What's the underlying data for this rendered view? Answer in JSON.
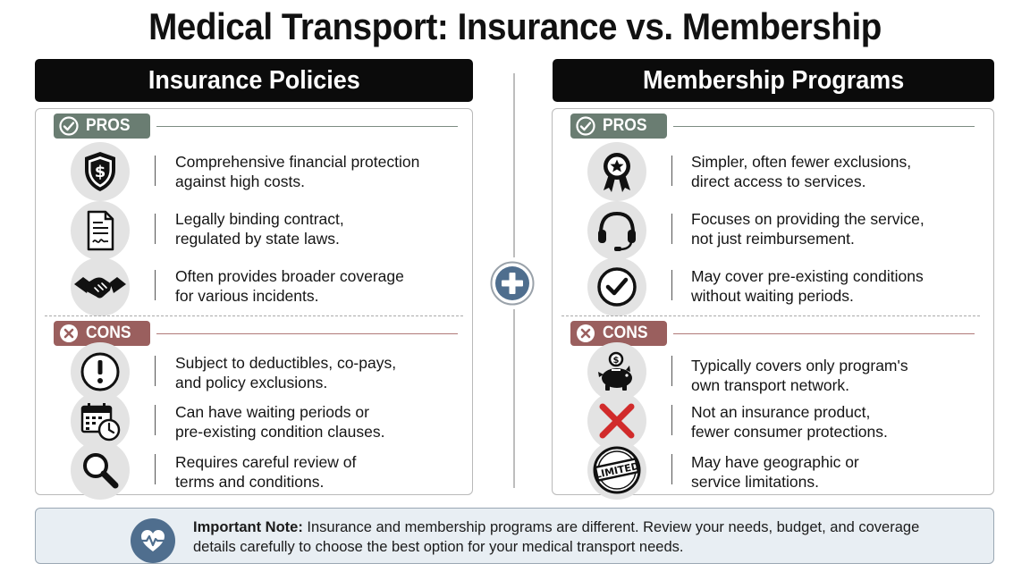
{
  "title": "Medical Transport: Insurance vs. Membership",
  "columns": {
    "insurance": {
      "header": "Insurance Policies",
      "pros_label": "PROS",
      "cons_label": "CONS",
      "pros": [
        {
          "icon": "shield-dollar-icon",
          "line1": "Comprehensive financial protection",
          "line2": "against high costs."
        },
        {
          "icon": "contract-document-icon",
          "line1": "Legally binding contract,",
          "line2": "regulated by state laws."
        },
        {
          "icon": "handshake-icon",
          "line1": "Often provides broader coverage",
          "line2": "for various incidents."
        }
      ],
      "cons": [
        {
          "icon": "exclamation-icon",
          "line1": "Subject to deductibles, co-pays,",
          "line2": "and policy exclusions."
        },
        {
          "icon": "calendar-clock-icon",
          "line1": "Can have waiting periods or",
          "line2": "pre-existing condition clauses."
        },
        {
          "icon": "magnifier-icon",
          "line1": "Requires careful review of",
          "line2": "terms and conditions."
        }
      ]
    },
    "membership": {
      "header": "Membership Programs",
      "pros_label": "PROS",
      "cons_label": "CONS",
      "pros": [
        {
          "icon": "award-ribbon-icon",
          "line1": "Simpler, often fewer exclusions,",
          "line2": "direct access to services."
        },
        {
          "icon": "headset-icon",
          "line1": "Focuses on providing the service,",
          "line2": "not just reimbursement."
        },
        {
          "icon": "checkmark-circle-icon",
          "line1": "May cover pre-existing conditions",
          "line2": "without waiting periods."
        }
      ],
      "cons": [
        {
          "icon": "piggy-bank-icon",
          "line1": "Typically covers only program's",
          "line2": "own transport network."
        },
        {
          "icon": "red-x-icon",
          "line1": "Not an insurance product,",
          "line2": "fewer consumer protections."
        },
        {
          "icon": "limited-stamp-icon",
          "line1": "May have geographic or",
          "line2": "service limitations."
        }
      ]
    }
  },
  "stamp_text": "LIMITED",
  "note": {
    "label": "Important Note:",
    "line1": "Insurance and membership programs are different. Review your needs, budget, and coverage",
    "line2": "details carefully to choose the best option for your medical transport needs."
  },
  "colors": {
    "pros": "#6a7d72",
    "cons": "#9a5f5e",
    "header": "#0b0b0b",
    "note_bg": "#e8eef3",
    "accent": "#4f6e8e"
  }
}
